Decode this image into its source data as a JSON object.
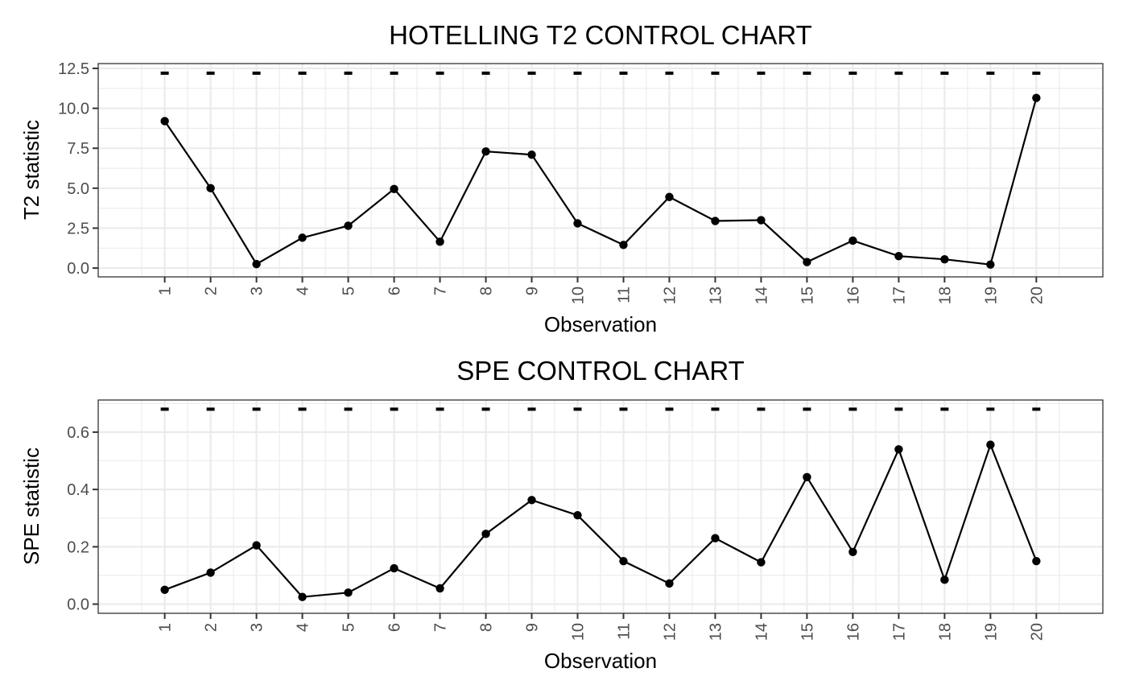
{
  "chart_data": [
    {
      "type": "line",
      "title": "HOTELLING T2 CONTROL CHART",
      "xlabel": "Observation",
      "ylabel": "T2 statistic",
      "x": [
        1,
        2,
        3,
        4,
        5,
        6,
        7,
        8,
        9,
        10,
        11,
        12,
        13,
        14,
        15,
        16,
        17,
        18,
        19,
        20
      ],
      "x_tick_labels": [
        "1",
        "2",
        "3",
        "4",
        "5",
        "6",
        "7",
        "8",
        "9",
        "10",
        "11",
        "12",
        "13",
        "14",
        "15",
        "16",
        "17",
        "18",
        "19",
        "20"
      ],
      "y_tick_values": [
        0,
        2.5,
        5,
        7.5,
        10,
        12.5
      ],
      "y_tick_labels": [
        "0.0",
        "2.5",
        "5.0",
        "7.5",
        "10.0",
        "12.5"
      ],
      "series": [
        {
          "values": [
            9.2,
            5.0,
            0.25,
            1.9,
            2.65,
            4.95,
            1.65,
            7.3,
            7.1,
            2.8,
            1.45,
            4.45,
            2.95,
            3.0,
            0.38,
            1.72,
            0.75,
            0.55,
            0.22,
            10.65
          ]
        }
      ],
      "control_limit": [
        12.2,
        12.2,
        12.2,
        12.2,
        12.2,
        12.2,
        12.2,
        12.2,
        12.2,
        12.2,
        12.2,
        12.2,
        12.2,
        12.2,
        12.2,
        12.2,
        12.2,
        12.2,
        12.2,
        12.2
      ],
      "xlim": [
        -0.45,
        21.45
      ],
      "ylim": [
        -0.55,
        12.8
      ],
      "grid": true,
      "legend": "none"
    },
    {
      "type": "line",
      "title": "SPE CONTROL CHART",
      "xlabel": "Observation",
      "ylabel": "SPE statistic",
      "x": [
        1,
        2,
        3,
        4,
        5,
        6,
        7,
        8,
        9,
        10,
        11,
        12,
        13,
        14,
        15,
        16,
        17,
        18,
        19,
        20
      ],
      "x_tick_labels": [
        "1",
        "2",
        "3",
        "4",
        "5",
        "6",
        "7",
        "8",
        "9",
        "10",
        "11",
        "12",
        "13",
        "14",
        "15",
        "16",
        "17",
        "18",
        "19",
        "20"
      ],
      "y_tick_values": [
        0,
        0.2,
        0.4,
        0.6
      ],
      "y_tick_labels": [
        "0.0",
        "0.2",
        "0.4",
        "0.6"
      ],
      "series": [
        {
          "values": [
            0.05,
            0.11,
            0.205,
            0.025,
            0.04,
            0.125,
            0.055,
            0.245,
            0.363,
            0.31,
            0.15,
            0.072,
            0.23,
            0.146,
            0.443,
            0.182,
            0.54,
            0.085,
            0.556,
            0.15
          ]
        }
      ],
      "control_limit": [
        0.68,
        0.68,
        0.68,
        0.68,
        0.68,
        0.68,
        0.68,
        0.68,
        0.68,
        0.68,
        0.68,
        0.68,
        0.68,
        0.68,
        0.68,
        0.68,
        0.68,
        0.68,
        0.68,
        0.68
      ],
      "xlim": [
        -0.45,
        21.45
      ],
      "ylim": [
        -0.032,
        0.712
      ],
      "grid": true,
      "legend": "none"
    }
  ]
}
